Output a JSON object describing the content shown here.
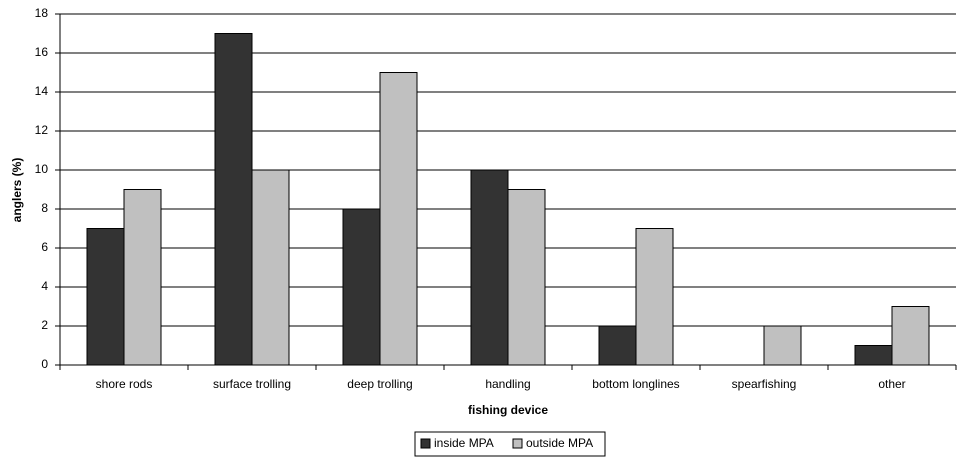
{
  "chart_data": {
    "type": "bar",
    "x_label": "fishing device",
    "y_label": "anglers (%)",
    "categories": [
      "shore rods",
      "surface trolling",
      "deep trolling",
      "handling",
      "bottom longlines",
      "spearfishing",
      "other"
    ],
    "series": [
      {
        "name": "inside MPA",
        "color": "#333333",
        "values": [
          7,
          17,
          8,
          10,
          2,
          0,
          1
        ]
      },
      {
        "name": "outside MPA",
        "color": "#c0c0c0",
        "values": [
          9,
          10,
          15,
          9,
          7,
          2,
          3
        ]
      }
    ],
    "ylim": [
      0,
      18
    ],
    "yticks": [
      0,
      2,
      4,
      6,
      8,
      10,
      12,
      14,
      16,
      18
    ],
    "grid": true,
    "legend": "bottom"
  }
}
